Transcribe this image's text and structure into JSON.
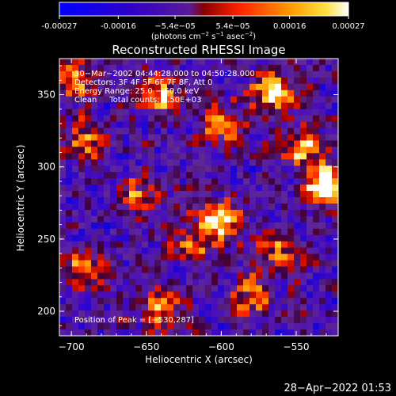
{
  "chart_data": {
    "type": "heatmap",
    "title": "Reconstructed RHESSI Image",
    "xlabel": "Heliocentric X (arcsec)",
    "ylabel": "Heliocentric Y (arcsec)",
    "xlim": [
      -708,
      -522
    ],
    "ylim": [
      183,
      375
    ],
    "x_ticks": [
      -700,
      -650,
      -600,
      -550
    ],
    "y_ticks": [
      200,
      250,
      300,
      350
    ],
    "colorbar": {
      "range": [
        -0.00027,
        0.00027
      ],
      "tick_values": [
        -0.00027,
        -0.00016,
        -5.4e-05,
        5.4e-05,
        0.00016,
        0.00027
      ],
      "tick_labels": [
        "-0.00027",
        "-0.00016",
        "−5.4e−05",
        "5.4e−05",
        "0.00016",
        "0.00027"
      ],
      "units_prefix": "(photons cm",
      "units_sup1": "−2",
      "units_mid": " s",
      "units_sup2": "−1",
      "units_mid2": " asec",
      "units_sup3": "−2",
      "units_suffix": ")"
    },
    "annotations": [
      "30−Mar−2002 04:44:28.000 to 04:50:28.000",
      "Detectors: 3F 4F 5F 6F 7F 8F, Att 0",
      "Energy Range: 25.0 − 50.0 keV",
      "Clean     Total counts: 7.50E+03"
    ],
    "peak_label": "Position of Peak = [−530,287]",
    "peak_position": [
      -530,
      287
    ],
    "grid": false,
    "colormap": "blue-purple-red-yellow-white"
  },
  "timestamp": "28−Apr−2022 01:53",
  "colors": {
    "background": "#000000",
    "text": "#ffffff"
  }
}
